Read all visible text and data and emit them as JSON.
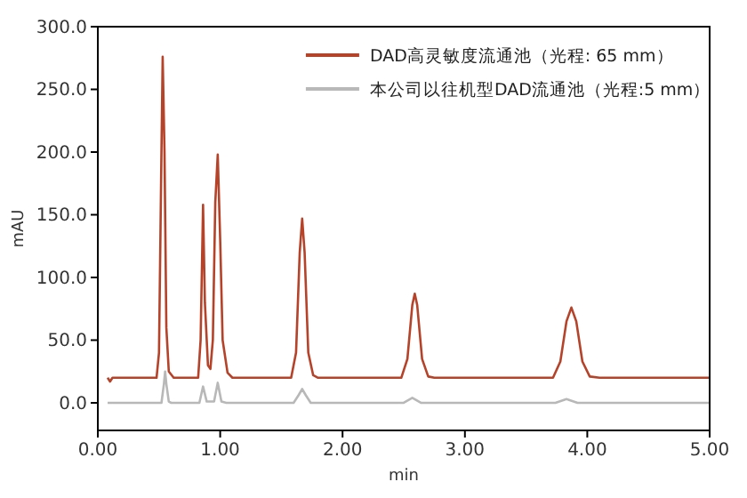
{
  "chart_data": {
    "type": "line",
    "xlabel": "min",
    "ylabel": "mAU",
    "xlim": [
      0,
      5
    ],
    "ylim": [
      -22,
      300
    ],
    "xticks": [
      {
        "value": 0,
        "label": "0.00"
      },
      {
        "value": 1,
        "label": "1.00"
      },
      {
        "value": 2,
        "label": "2.00"
      },
      {
        "value": 3,
        "label": "3.00"
      },
      {
        "value": 4,
        "label": "4.00"
      },
      {
        "value": 5,
        "label": "5.00"
      }
    ],
    "yticks": [
      {
        "value": 0,
        "label": "0.0"
      },
      {
        "value": 50,
        "label": "50.0"
      },
      {
        "value": 100,
        "label": "100.0"
      },
      {
        "value": 150,
        "label": "150.0"
      },
      {
        "value": 200,
        "label": "200.0"
      },
      {
        "value": 250,
        "label": "250.0"
      },
      {
        "value": 300,
        "label": "300.0"
      }
    ],
    "grid": false,
    "legend": "top right",
    "marker": "none",
    "line_style": "solid",
    "series": [
      {
        "name": "DAD高灵敏度流通池（光程: 65 mm）",
        "color": "#b5432a",
        "x": [
          0.08,
          0.1,
          0.12,
          0.2,
          0.48,
          0.5,
          0.52,
          0.53,
          0.545,
          0.56,
          0.58,
          0.62,
          0.82,
          0.84,
          0.86,
          0.875,
          0.9,
          0.92,
          0.94,
          0.96,
          0.98,
          1.0,
          1.02,
          1.06,
          1.1,
          1.58,
          1.62,
          1.65,
          1.67,
          1.69,
          1.72,
          1.76,
          1.8,
          2.48,
          2.53,
          2.57,
          2.59,
          2.61,
          2.65,
          2.7,
          2.75,
          3.72,
          3.78,
          3.83,
          3.87,
          3.91,
          3.96,
          4.02,
          4.1,
          5.0
        ],
        "values": [
          20,
          17,
          20,
          20,
          20,
          40,
          200,
          276,
          200,
          60,
          25,
          20,
          20,
          50,
          158,
          80,
          30,
          27,
          50,
          160,
          198,
          130,
          50,
          24,
          20,
          20,
          40,
          120,
          147,
          120,
          40,
          22,
          20,
          20,
          35,
          78,
          87,
          78,
          35,
          21,
          20,
          20,
          33,
          65,
          76,
          65,
          33,
          21,
          20,
          20
        ]
      },
      {
        "name": "本公司以往机型DAD流通池（光程:5 mm）",
        "color": "#b8b8b8",
        "x": [
          0.08,
          0.52,
          0.54,
          0.55,
          0.56,
          0.58,
          0.6,
          0.83,
          0.86,
          0.89,
          0.95,
          0.98,
          1.01,
          1.05,
          1.6,
          1.64,
          1.67,
          1.7,
          1.74,
          2.5,
          2.57,
          2.64,
          3.74,
          3.83,
          3.92,
          5.0
        ],
        "values": [
          0,
          0,
          15,
          25,
          15,
          1,
          0,
          0,
          13,
          1,
          1,
          16,
          1,
          0,
          0,
          6,
          11,
          6,
          0,
          0,
          4,
          0,
          0,
          3,
          0,
          0
        ]
      }
    ]
  }
}
